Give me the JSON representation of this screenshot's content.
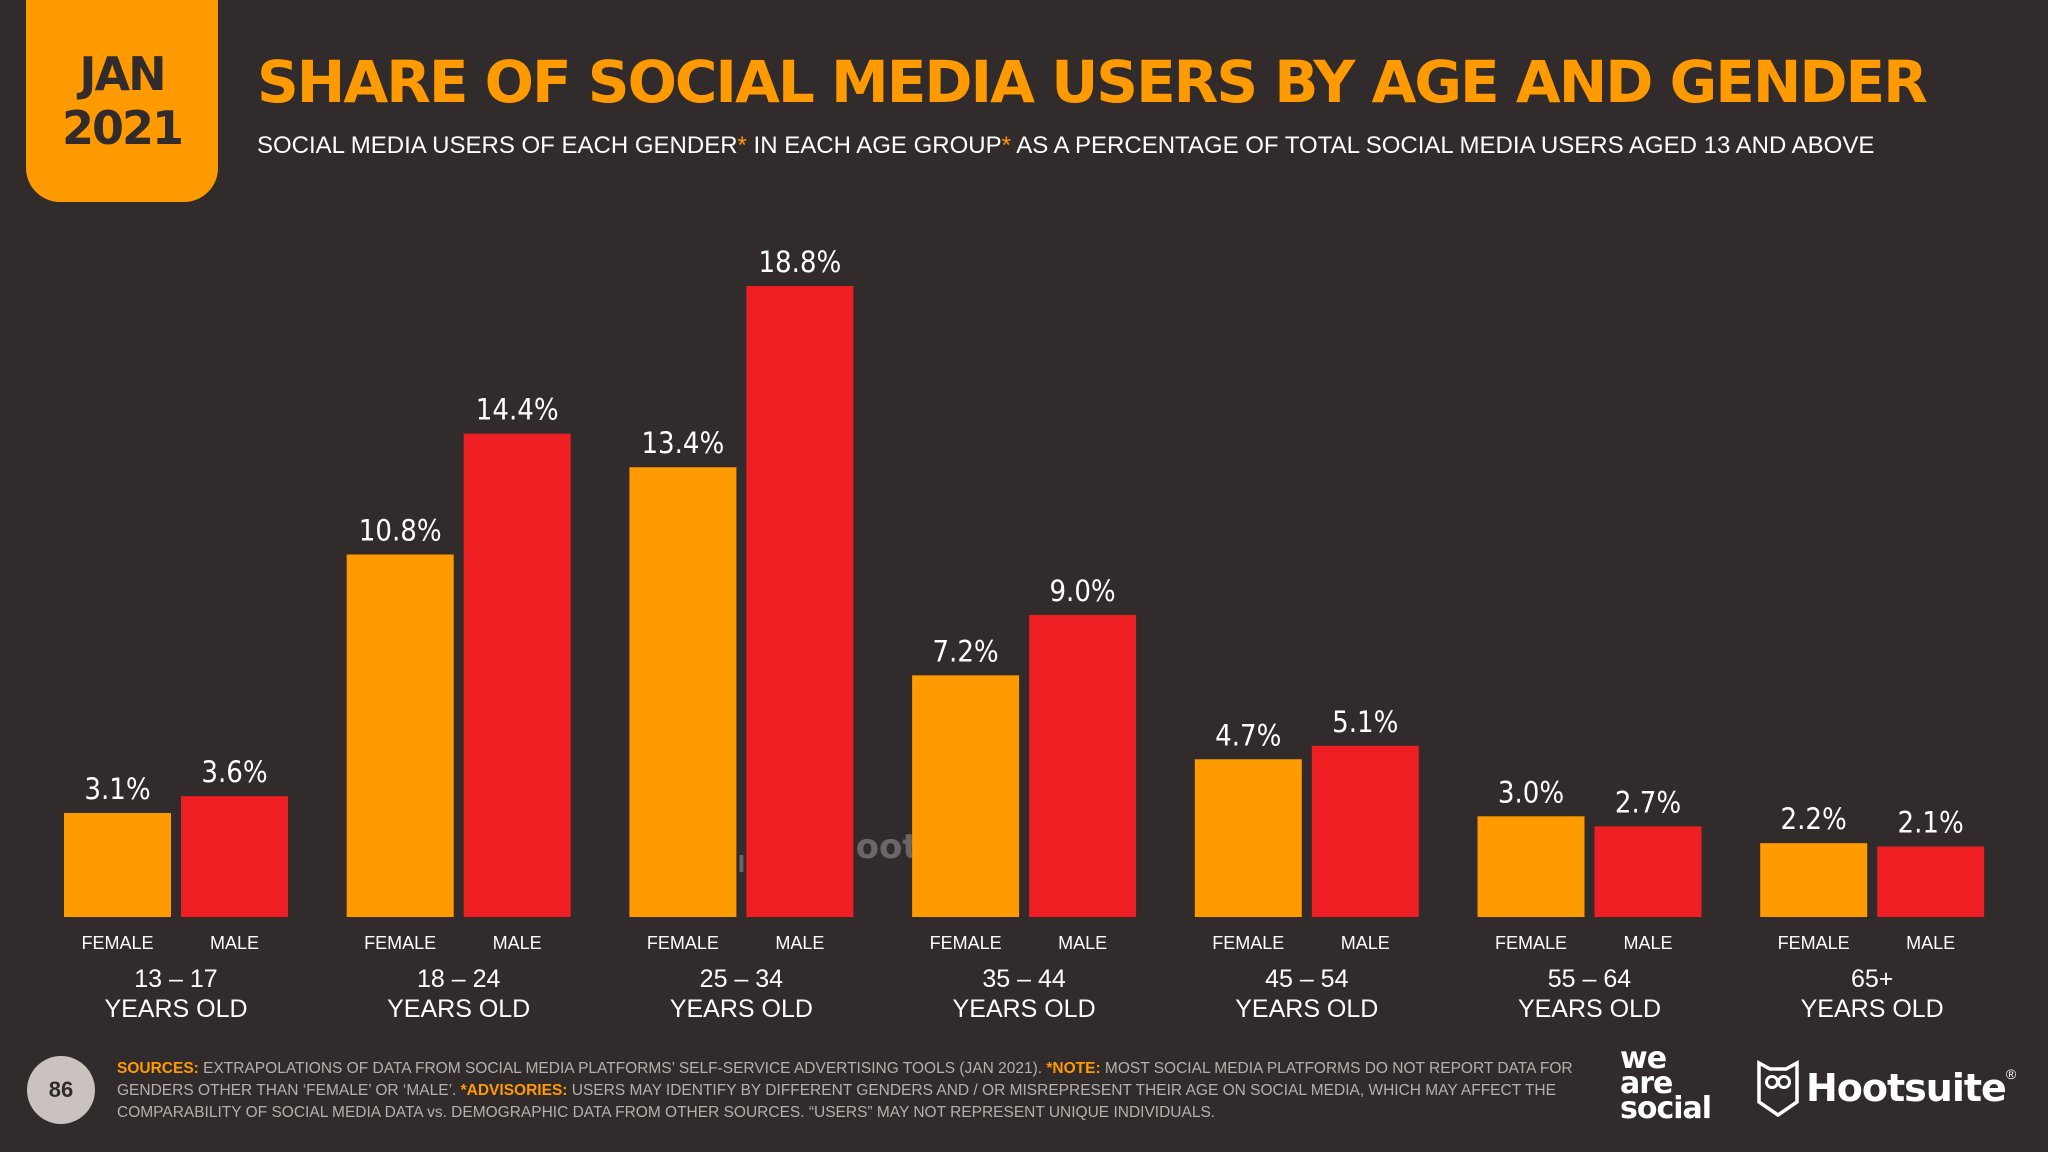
{
  "badge": {
    "month": "JAN",
    "year": "2021"
  },
  "title": "SHARE OF SOCIAL MEDIA USERS BY AGE AND GENDER",
  "subtitle": {
    "part1": "SOCIAL MEDIA USERS OF EACH GENDER",
    "part2": " IN EACH AGE GROUP",
    "part3": " AS A PERCENTAGE OF TOTAL SOCIAL MEDIA USERS AGED 13 AND ABOVE",
    "asterisk": "*"
  },
  "colors": {
    "female": "#ff9a00",
    "male": "#ee1e23",
    "background": "#312c2b"
  },
  "chart_data": {
    "type": "bar",
    "categories": [
      [
        "13 – 17",
        "YEARS OLD"
      ],
      [
        "18 – 24",
        "YEARS OLD"
      ],
      [
        "25 – 34",
        "YEARS OLD"
      ],
      [
        "35 – 44",
        "YEARS OLD"
      ],
      [
        "45 – 54",
        "YEARS OLD"
      ],
      [
        "55 – 64",
        "YEARS OLD"
      ],
      [
        "65+",
        "YEARS OLD"
      ]
    ],
    "series": [
      {
        "name": "FEMALE",
        "values": [
          3.1,
          10.8,
          13.4,
          7.2,
          4.7,
          3.0,
          2.2
        ],
        "labels": [
          "3.1%",
          "10.8%",
          "13.4%",
          "7.2%",
          "4.7%",
          "3.0%",
          "2.2%"
        ]
      },
      {
        "name": "MALE",
        "values": [
          3.6,
          14.4,
          18.8,
          9.0,
          5.1,
          2.7,
          2.1
        ],
        "labels": [
          "3.6%",
          "14.4%",
          "18.8%",
          "9.0%",
          "5.1%",
          "2.7%",
          "2.1%"
        ]
      }
    ],
    "unit": "%",
    "ylim": [
      0,
      18.8
    ],
    "grid": false
  },
  "footer": {
    "page_number": "86",
    "sources_label": "SOURCES:",
    "sources_text": " EXTRAPOLATIONS OF DATA FROM SOCIAL MEDIA PLATFORMS’ SELF-SERVICE ADVERTISING TOOLS (JAN 2021). ",
    "note_label": "*NOTE:",
    "note_text": " MOST SOCIAL MEDIA PLATFORMS DO NOT REPORT DATA FOR GENDERS OTHER THAN ‘FEMALE’ OR ‘MALE’. ",
    "advisories_label": "*ADVISORIES:",
    "advisories_text": " USERS MAY IDENTIFY BY DIFFERENT GENDERS AND / OR MISREPRESENT THEIR AGE ON SOCIAL MEDIA, WHICH MAY AFFECT THE COMPARABILITY OF SOCIAL MEDIA DATA vs. DEMOGRAPHIC DATA FROM OTHER SOURCES. “USERS” MAY NOT REPRESENT UNIQUE INDIVIDUALS."
  },
  "brands": {
    "we_are_social": [
      "we",
      "are",
      "social"
    ],
    "hootsuite": "Hootsuite",
    "hootsuite_mark": "®",
    "owl_icon": "hootsuite-owl-icon"
  }
}
